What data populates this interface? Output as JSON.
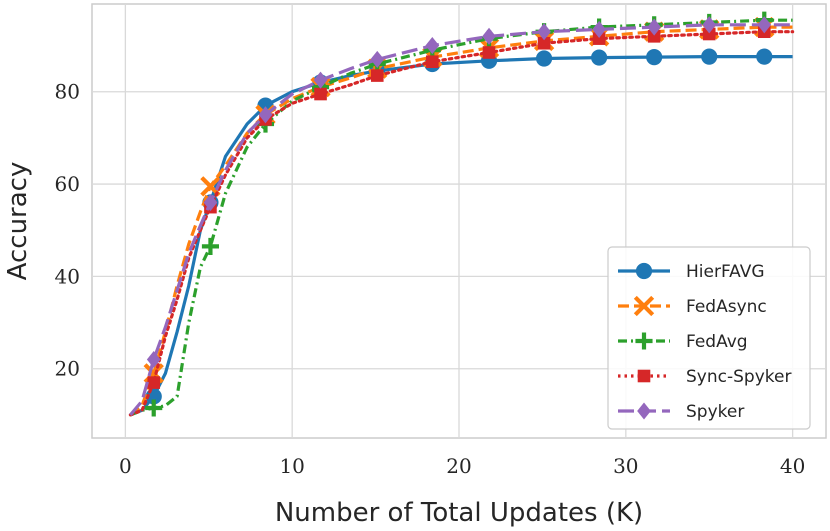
{
  "chart_data": {
    "type": "line",
    "title": "",
    "xlabel": "Number of Total Updates (K)",
    "ylabel": "Accuracy",
    "xlim": [
      -2,
      42
    ],
    "ylim": [
      5,
      99
    ],
    "xticks": [
      0,
      10,
      20,
      30,
      40
    ],
    "yticks": [
      20,
      40,
      60,
      80
    ],
    "grid": true,
    "legend_position": "lower-right",
    "series": [
      {
        "name": "HierFAVG",
        "color": "#1f77b4",
        "dash": "solid",
        "marker": "circle",
        "x": [
          0.3,
          1.0,
          1.7,
          2.4,
          3.1,
          3.8,
          4.5,
          5.1,
          6.0,
          7.3,
          8.4,
          10.0,
          11.7,
          13.5,
          15.1,
          18.4,
          21.8,
          25.1,
          28.4,
          31.7,
          35.0,
          38.3,
          40.0
        ],
        "y": [
          10,
          11,
          14,
          19,
          28,
          38,
          50,
          56,
          66,
          73,
          77,
          80,
          82,
          83.5,
          84.5,
          86,
          86.7,
          87.2,
          87.4,
          87.5,
          87.6,
          87.6,
          87.6
        ],
        "marker_x": [
          1.7,
          5.1,
          8.4,
          11.7,
          15.1,
          18.4,
          21.8,
          25.1,
          28.4,
          31.7,
          35.0,
          38.3
        ],
        "marker_y": [
          14,
          56,
          77,
          82,
          84.5,
          86,
          86.7,
          87.2,
          87.4,
          87.5,
          87.6,
          87.6
        ]
      },
      {
        "name": "FedAsync",
        "color": "#ff7f0e",
        "dash": "dashed",
        "marker": "x",
        "x": [
          0.3,
          1.0,
          1.7,
          2.4,
          3.1,
          3.8,
          4.5,
          5.1,
          6.0,
          7.3,
          8.4,
          10.0,
          11.7,
          13.5,
          15.1,
          18.4,
          21.8,
          25.1,
          28.4,
          31.7,
          35.0,
          38.3,
          40.0
        ],
        "y": [
          10,
          12,
          19,
          28,
          38,
          47,
          54,
          59.5,
          64,
          71,
          75,
          78.5,
          81,
          83,
          85,
          87.5,
          89.5,
          91,
          92,
          93,
          93.5,
          94,
          94
        ],
        "marker_x": [
          1.7,
          5.1,
          8.4,
          11.7,
          15.1,
          18.4,
          21.8,
          25.1,
          28.4,
          31.7,
          35.0,
          38.3
        ],
        "marker_y": [
          19,
          59.5,
          75,
          81,
          85,
          87.5,
          89.5,
          91,
          92,
          93,
          93.5,
          94
        ]
      },
      {
        "name": "FedAvg",
        "color": "#2ca02c",
        "dash": "dashdot",
        "marker": "plus",
        "x": [
          0.3,
          1.0,
          1.7,
          2.4,
          3.1,
          3.8,
          4.5,
          5.1,
          6.0,
          7.3,
          8.4,
          10.0,
          11.7,
          13.5,
          15.1,
          18.4,
          21.8,
          25.1,
          28.4,
          31.7,
          35.0,
          38.3,
          40.0
        ],
        "y": [
          10,
          11,
          11.5,
          12,
          14,
          30,
          42,
          46.5,
          58,
          68,
          73,
          78,
          81,
          84,
          86,
          89,
          91.5,
          93,
          94,
          94.5,
          95,
          95.5,
          95.5
        ],
        "marker_x": [
          1.7,
          5.1,
          8.4,
          11.7,
          15.1,
          18.4,
          21.8,
          25.1,
          28.4,
          31.7,
          35.0,
          38.3
        ],
        "marker_y": [
          11.5,
          46.5,
          73,
          81,
          86,
          89,
          91.5,
          93,
          94,
          94.5,
          95,
          95.5
        ]
      },
      {
        "name": "Sync-Spyker",
        "color": "#d62728",
        "dash": "dotted",
        "marker": "square",
        "x": [
          0.3,
          1.0,
          1.7,
          2.4,
          3.1,
          3.8,
          4.5,
          5.1,
          6.0,
          7.3,
          8.4,
          10.0,
          11.7,
          13.5,
          15.1,
          18.4,
          21.8,
          25.1,
          28.4,
          31.7,
          35.0,
          38.3,
          40.0
        ],
        "y": [
          10,
          11,
          17,
          27,
          35,
          44,
          50,
          55,
          62,
          70,
          74,
          77.5,
          79.5,
          81.5,
          83.5,
          86.5,
          88.5,
          90.5,
          91.5,
          92,
          92.5,
          93,
          93
        ],
        "marker_x": [
          1.7,
          5.1,
          8.4,
          11.7,
          15.1,
          18.4,
          21.8,
          25.1,
          28.4,
          31.7,
          35.0,
          38.3
        ],
        "marker_y": [
          17,
          55,
          74,
          79.5,
          83.5,
          86.5,
          88.5,
          90.5,
          91.5,
          92,
          92.5,
          93
        ]
      },
      {
        "name": "Spyker",
        "color": "#9467bd",
        "dash": "longdash",
        "marker": "diamond",
        "x": [
          0.3,
          1.0,
          1.7,
          2.4,
          3.1,
          3.8,
          4.5,
          5.1,
          6.0,
          7.3,
          8.4,
          10.0,
          11.7,
          13.5,
          15.1,
          18.4,
          21.8,
          25.1,
          28.4,
          31.7,
          35.0,
          38.3,
          40.0
        ],
        "y": [
          10,
          13,
          22,
          29,
          37,
          45,
          51,
          56,
          63,
          71,
          75,
          79.5,
          82.5,
          85,
          87,
          90,
          92,
          93,
          93.5,
          94,
          94.5,
          94.5,
          94.5
        ],
        "marker_x": [
          1.7,
          5.1,
          8.4,
          11.7,
          15.1,
          18.4,
          21.8,
          25.1,
          28.4,
          31.7,
          35.0,
          38.3
        ],
        "marker_y": [
          22,
          56,
          75,
          82.5,
          87,
          90,
          92,
          93,
          93.5,
          94,
          94.5,
          94.5
        ]
      }
    ]
  }
}
